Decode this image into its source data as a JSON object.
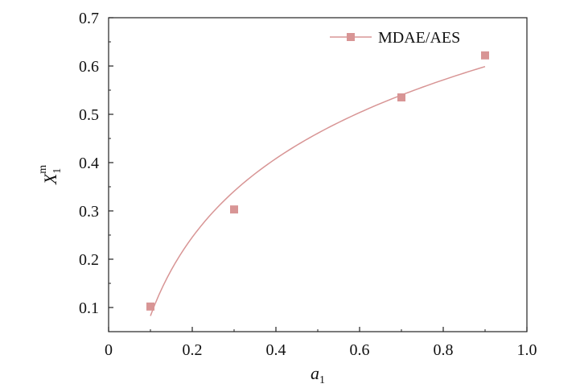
{
  "chart_data": {
    "type": "scatter",
    "title": "",
    "xlabel": "a",
    "xlabel_sub": "1",
    "ylabel": "X",
    "ylabel_sub": "1",
    "ylabel_sup": "m",
    "xlim": [
      0,
      1.0
    ],
    "ylim": [
      0.05,
      0.7
    ],
    "xticks": [
      0,
      0.2,
      0.4,
      0.6,
      0.8,
      1.0
    ],
    "xtick_labels": [
      "0",
      "0.2",
      "0.4",
      "0.6",
      "0.8",
      "1.0"
    ],
    "yticks": [
      0.1,
      0.2,
      0.3,
      0.4,
      0.5,
      0.6,
      0.7
    ],
    "ytick_labels": [
      "0.1",
      "0.2",
      "0.3",
      "0.4",
      "0.5",
      "0.6",
      "0.7"
    ],
    "grid": false,
    "legend_position": "top-right",
    "series": [
      {
        "name": "MDAE/AES",
        "color": "#d89595",
        "marker": "square",
        "x": [
          0.1,
          0.3,
          0.7,
          0.9
        ],
        "y": [
          0.102,
          0.303,
          0.535,
          0.622
        ],
        "fit_curve": true
      }
    ]
  }
}
